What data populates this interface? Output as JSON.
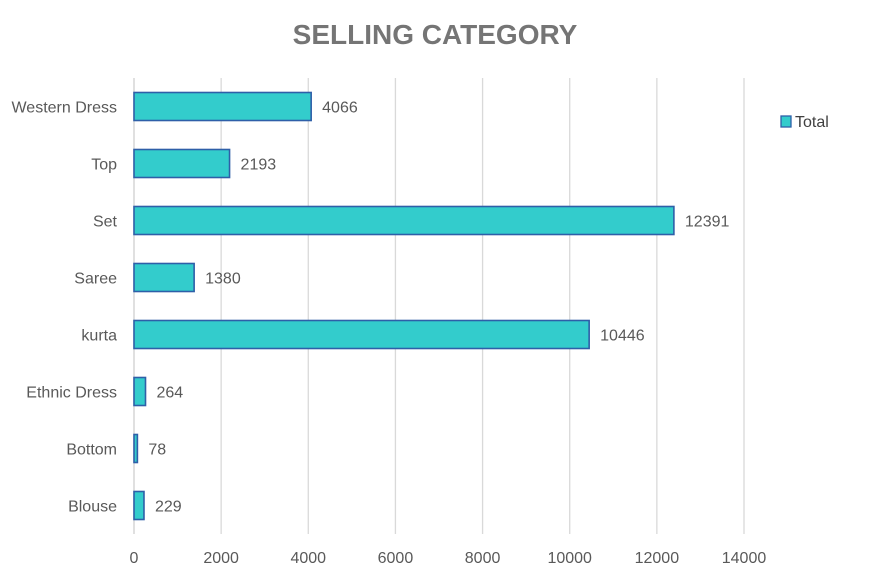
{
  "chart_data": {
    "type": "bar",
    "orientation": "horizontal",
    "title": "SELLING CATEGORY",
    "categories": [
      "Western Dress",
      "Top",
      "Set",
      "Saree",
      "kurta",
      "Ethnic Dress",
      "Bottom",
      "Blouse"
    ],
    "series": [
      {
        "name": "Total",
        "values": [
          4066,
          2193,
          12391,
          1380,
          10446,
          264,
          78,
          229
        ]
      }
    ],
    "xlim": [
      0,
      14000
    ],
    "x_ticks": [
      0,
      2000,
      4000,
      6000,
      8000,
      10000,
      12000,
      14000
    ],
    "data_labels": true,
    "grid": "vertical major gridlines",
    "legend_position": "right",
    "colors": {
      "bar_fill": "#33CCCC",
      "bar_border": "#2E5FA8",
      "title": "#757575",
      "text": "#595959",
      "grid": "#D9D9D9"
    }
  }
}
